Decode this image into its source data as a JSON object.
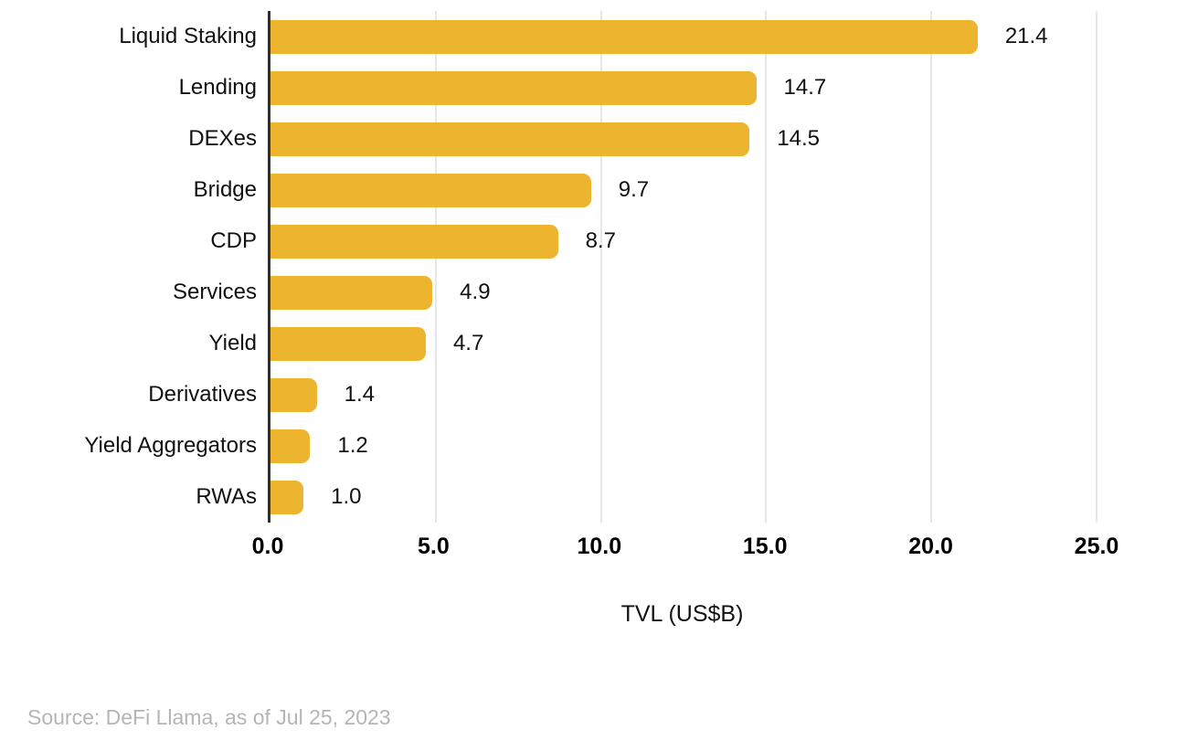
{
  "chart_data": {
    "type": "bar",
    "orientation": "horizontal",
    "categories": [
      "Liquid Staking",
      "Lending",
      "DEXes",
      "Bridge",
      "CDP",
      "Services",
      "Yield",
      "Derivatives",
      "Yield Aggregators",
      "RWAs"
    ],
    "values": [
      21.4,
      14.7,
      14.5,
      9.7,
      8.7,
      4.9,
      4.7,
      1.4,
      1.2,
      1.0
    ],
    "value_labels": [
      "21.4",
      "14.7",
      "14.5",
      "9.7",
      "8.7",
      "4.9",
      "4.7",
      "1.4",
      "1.2",
      "1.0"
    ],
    "title": "",
    "xlabel": "TVL (US$B)",
    "ylabel": "",
    "xlim": [
      0,
      25
    ],
    "xticks": [
      0,
      5,
      10,
      15,
      20,
      25
    ],
    "xtick_labels": [
      "0.0",
      "5.0",
      "10.0",
      "15.0",
      "20.0",
      "25.0"
    ],
    "grid": true,
    "legend": false,
    "bar_color": "#edb52f",
    "gridline_color": "#e7e7e7",
    "axis_line_color": "#2f2f2f"
  },
  "footer": {
    "source_text": "Source: DeFi Llama, as of Jul 25, 2023"
  }
}
